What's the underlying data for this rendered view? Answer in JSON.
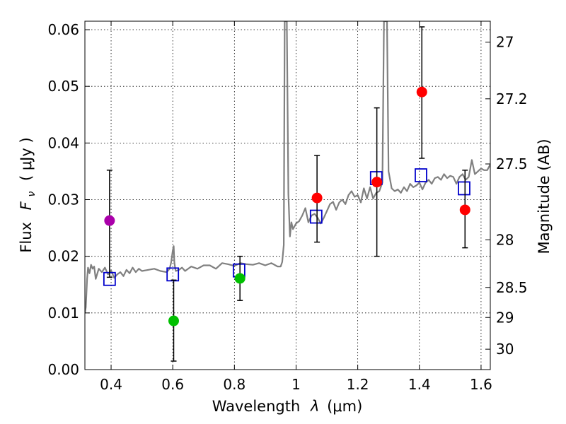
{
  "chart_data": {
    "type": "scatter",
    "xlabel_prefix": "Wavelength",
    "xlabel_symbol": "λ",
    "xlabel_unit": "(μm)",
    "ylabel_prefix": "Flux",
    "ylabel_symbol": "F",
    "ylabel_subscript": "ν",
    "ylabel_unit": "( μJy )",
    "y2label": "Magnitude (AB)",
    "xlim": [
      0.315,
      1.63
    ],
    "ylim": [
      0.0,
      0.0615
    ],
    "xticks": [
      0.4,
      0.6,
      0.8,
      1.0,
      1.2,
      1.4,
      1.6
    ],
    "xtick_labels": [
      "0.4",
      "0.6",
      "0.8",
      "1",
      "1.2",
      "1.4",
      "1.6"
    ],
    "yticks": [
      0.0,
      0.01,
      0.02,
      0.03,
      0.04,
      0.05,
      0.06
    ],
    "ytick_labels": [
      "0.00",
      "0.01",
      "0.02",
      "0.03",
      "0.04",
      "0.05",
      "0.06"
    ],
    "y2ticks": [
      {
        "flux": 0.0578,
        "label": "27"
      },
      {
        "flux": 0.0478,
        "label": "27.2"
      },
      {
        "flux": 0.0363,
        "label": "27.5"
      },
      {
        "flux": 0.0229,
        "label": "28"
      },
      {
        "flux": 0.0145,
        "label": "28.5"
      },
      {
        "flux": 0.0092,
        "label": "29"
      },
      {
        "flux": 0.0036,
        "label": "30"
      }
    ],
    "grid": true,
    "colors": {
      "spectrum": "#808080",
      "model": "#0000cc",
      "red": "#ff0000",
      "green": "#00c000",
      "purple": "#aa00aa",
      "errorbar": "#000000"
    },
    "spectrum": {
      "name": "model spectrum",
      "x": [
        0.315,
        0.318,
        0.322,
        0.325,
        0.33,
        0.335,
        0.34,
        0.345,
        0.35,
        0.36,
        0.37,
        0.38,
        0.39,
        0.4,
        0.41,
        0.42,
        0.43,
        0.44,
        0.45,
        0.46,
        0.47,
        0.48,
        0.49,
        0.5,
        0.52,
        0.54,
        0.56,
        0.58,
        0.59,
        0.595,
        0.6,
        0.603,
        0.605,
        0.608,
        0.61,
        0.62,
        0.63,
        0.64,
        0.66,
        0.68,
        0.7,
        0.72,
        0.74,
        0.76,
        0.78,
        0.8,
        0.82,
        0.84,
        0.86,
        0.88,
        0.9,
        0.92,
        0.94,
        0.95,
        0.955,
        0.96,
        0.963,
        0.966,
        0.97,
        0.975,
        0.98,
        0.985,
        0.99,
        1.0,
        1.01,
        1.02,
        1.03,
        1.04,
        1.05,
        1.06,
        1.07,
        1.08,
        1.09,
        1.1,
        1.11,
        1.12,
        1.13,
        1.14,
        1.15,
        1.16,
        1.17,
        1.18,
        1.19,
        1.2,
        1.21,
        1.22,
        1.23,
        1.24,
        1.25,
        1.26,
        1.27,
        1.28,
        1.285,
        1.29,
        1.295,
        1.3,
        1.31,
        1.32,
        1.33,
        1.34,
        1.35,
        1.36,
        1.37,
        1.38,
        1.39,
        1.4,
        1.41,
        1.42,
        1.43,
        1.44,
        1.45,
        1.46,
        1.47,
        1.48,
        1.49,
        1.5,
        1.51,
        1.52,
        1.53,
        1.54,
        1.55,
        1.56,
        1.57,
        1.58,
        1.59,
        1.6,
        1.61,
        1.62,
        1.63
      ],
      "y": [
        0.01,
        0.011,
        0.016,
        0.018,
        0.017,
        0.0185,
        0.0178,
        0.0182,
        0.016,
        0.0178,
        0.0172,
        0.018,
        0.0168,
        0.0175,
        0.0162,
        0.0168,
        0.0172,
        0.0165,
        0.0176,
        0.017,
        0.018,
        0.0172,
        0.0178,
        0.0174,
        0.0176,
        0.0178,
        0.0174,
        0.0172,
        0.0178,
        0.019,
        0.021,
        0.0218,
        0.019,
        0.0178,
        0.0174,
        0.0176,
        0.018,
        0.0174,
        0.0182,
        0.0178,
        0.0184,
        0.0184,
        0.0178,
        0.0188,
        0.0186,
        0.0183,
        0.0188,
        0.0186,
        0.0185,
        0.0188,
        0.0184,
        0.0188,
        0.0182,
        0.0182,
        0.019,
        0.022,
        0.0615,
        0.0615,
        0.0615,
        0.031,
        0.0235,
        0.026,
        0.0248,
        0.0258,
        0.0262,
        0.0272,
        0.0285,
        0.026,
        0.0272,
        0.0275,
        0.0268,
        0.0258,
        0.0268,
        0.028,
        0.0292,
        0.0296,
        0.0282,
        0.0295,
        0.03,
        0.0292,
        0.0308,
        0.0315,
        0.0305,
        0.0308,
        0.0295,
        0.032,
        0.0302,
        0.0322,
        0.0302,
        0.0312,
        0.0315,
        0.033,
        0.0615,
        0.0615,
        0.0615,
        0.035,
        0.032,
        0.0315,
        0.0318,
        0.0312,
        0.0322,
        0.0315,
        0.0328,
        0.0322,
        0.0325,
        0.033,
        0.0318,
        0.033,
        0.0335,
        0.0328,
        0.0338,
        0.034,
        0.0335,
        0.0345,
        0.0338,
        0.0342,
        0.034,
        0.0328,
        0.034,
        0.0345,
        0.0335,
        0.034,
        0.037,
        0.0345,
        0.035,
        0.0355,
        0.0352,
        0.0352,
        0.0362
      ]
    },
    "model_points": {
      "name": "model photometry",
      "marker": "open-square",
      "x": [
        0.395,
        0.6,
        0.815,
        1.065,
        1.26,
        1.405,
        1.545
      ],
      "y": [
        0.016,
        0.0168,
        0.0175,
        0.027,
        0.0338,
        0.0343,
        0.032
      ]
    },
    "observed": [
      {
        "x": 0.395,
        "y": 0.0263,
        "err_low": 0.0163,
        "err_high": 0.0352,
        "color": "purple"
      },
      {
        "x": 0.603,
        "y": 0.0086,
        "err_low": 0.0015,
        "err_high": 0.0158,
        "color": "green"
      },
      {
        "x": 0.818,
        "y": 0.0161,
        "err_low": 0.0122,
        "err_high": 0.02,
        "color": "green"
      },
      {
        "x": 1.068,
        "y": 0.0303,
        "err_low": 0.0225,
        "err_high": 0.0378,
        "color": "red"
      },
      {
        "x": 1.262,
        "y": 0.0331,
        "err_low": 0.02,
        "err_high": 0.0462,
        "color": "red"
      },
      {
        "x": 1.408,
        "y": 0.049,
        "err_low": 0.0373,
        "err_high": 0.0605,
        "color": "red"
      },
      {
        "x": 1.548,
        "y": 0.0282,
        "err_low": 0.0215,
        "err_high": 0.0352,
        "color": "red"
      }
    ]
  }
}
